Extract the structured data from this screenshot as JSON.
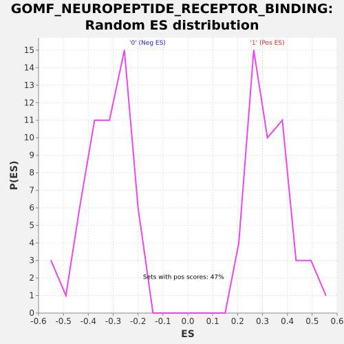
{
  "chart_data": {
    "type": "line",
    "title_lines": [
      "GOMF_NEUROPEPTIDE_RECEPTOR_BINDING:",
      "Random ES distribution"
    ],
    "xlabel": "ES",
    "ylabel": "P(ES)",
    "xlim": [
      -0.6,
      0.6
    ],
    "ylim": [
      0,
      15.7
    ],
    "xticks": [
      -0.6,
      -0.5,
      -0.4,
      -0.3,
      -0.2,
      -0.1,
      0.0,
      0.1,
      0.2,
      0.3,
      0.4,
      0.5,
      0.6
    ],
    "xtick_labels": [
      "-0.6",
      "-0.5",
      "-0.4",
      "-0.3",
      "-0.2",
      "-0.1",
      "0.0",
      "0.1",
      "0.2",
      "0.3",
      "0.4",
      "0.5",
      "0.6"
    ],
    "yticks": [
      0,
      1,
      2,
      3,
      4,
      5,
      6,
      7,
      8,
      9,
      10,
      11,
      12,
      13,
      14,
      15
    ],
    "ytick_labels": [
      "0",
      "1",
      "2",
      "3",
      "4",
      "5",
      "6",
      "7",
      "8",
      "9",
      "10",
      "11",
      "12",
      "13",
      "14",
      "15"
    ],
    "grid": true,
    "series": [
      {
        "color": "#ee44ee",
        "x": [
          -0.55,
          -0.49,
          -0.435,
          -0.375,
          -0.315,
          -0.255,
          -0.2,
          -0.14,
          -0.08,
          -0.025,
          0.035,
          0.09,
          0.15,
          0.205,
          0.265,
          0.32,
          0.38,
          0.435,
          0.495,
          0.555
        ],
        "y": [
          3,
          1,
          6,
          11,
          11,
          15,
          6,
          0,
          0,
          0,
          0,
          0,
          0,
          4,
          15,
          10,
          11,
          3,
          3,
          1
        ]
      }
    ],
    "annotations": [
      {
        "text": "'0' (Neg ES)",
        "x": -0.235,
        "y": 15.3,
        "color": "#2222cc"
      },
      {
        "text": "'1' (Pos ES)",
        "x": 0.25,
        "y": 15.3,
        "color": "#dd2222"
      },
      {
        "text": "Sets with pos scores: 47%",
        "x": -0.18,
        "y": 1.95,
        "color": "#000000"
      }
    ]
  }
}
